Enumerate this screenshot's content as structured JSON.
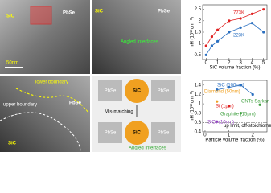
{
  "panels": [
    {
      "labels": [
        "SiC",
        "PbSe",
        "50nm"
      ]
    },
    {
      "labels": [
        "SiC",
        "PbSe",
        "Angled Interfaces"
      ]
    },
    {
      "labels": [
        "lower boundary",
        "upper boundary",
        "SiC",
        "PbSe"
      ]
    },
    {
      "labels": [
        "PbSe",
        "SiC",
        "PbSe",
        "Mis-matching",
        "PbSe",
        "SiC",
        "PbSe",
        "Angled Interfaces"
      ]
    }
  ],
  "chart_data": [
    {
      "type": "scatter",
      "y_label": "nH (10¹⁹cm⁻³)",
      "x_label": "SiC volume fraction (%)",
      "xlim": [
        -0.3,
        5.3
      ],
      "xticks": [
        0,
        1,
        2,
        3,
        4,
        5
      ],
      "ylim": [
        0.3,
        2.7
      ],
      "yticks": [
        0.5,
        1.0,
        1.5,
        2.0,
        2.5
      ],
      "series": [
        {
          "name": "773K",
          "color": "#e02020",
          "x": [
            0,
            0.5,
            1,
            2,
            3,
            4,
            5
          ],
          "values": [
            0.9,
            1.3,
            1.6,
            2.0,
            2.1,
            2.3,
            2.5
          ]
        },
        {
          "name": "223K",
          "color": "#2a6fc0",
          "x": [
            0,
            0.5,
            1,
            2,
            3,
            4,
            5
          ],
          "values": [
            0.5,
            0.9,
            1.1,
            1.5,
            1.7,
            1.9,
            1.5
          ]
        }
      ]
    },
    {
      "type": "scatter",
      "y_label": "nH (10¹⁹cm⁻³)",
      "x_label": "Particle volume fraction (%)",
      "xlim": [
        -0.1,
        2.6
      ],
      "xticks": [
        0,
        1,
        2
      ],
      "ylim": [
        0.4,
        1.5
      ],
      "yticks": [
        0.4,
        0.6,
        0.8,
        1.0,
        1.2,
        1.4
      ],
      "limit_line": 0.6,
      "limit_label": "up limit, off-stoichiometric PbSe",
      "series": [
        {
          "name": "SiC (100nm)",
          "color": "#2a6fc0",
          "x": [
            0.5,
            1,
            1.5,
            2
          ],
          "values": [
            1.3,
            1.35,
            1.4,
            1.2
          ]
        },
        {
          "name": "Diamond (50nm)",
          "color": "#f0a020",
          "x": [
            0.5
          ],
          "values": [
            1.05
          ]
        },
        {
          "name": "Si (1μm)",
          "color": "#e02020",
          "x": [
            1
          ],
          "values": [
            0.95
          ]
        },
        {
          "name": "Graphite (15μm)",
          "color": "#40a040",
          "x": [
            1.5
          ],
          "values": [
            0.8
          ]
        },
        {
          "name": "SiO₂ (10nm)",
          "color": "#9040c0",
          "x": [
            0.5
          ],
          "values": [
            0.62
          ]
        },
        {
          "name": "CNTs Sarkar",
          "color": "#40a040",
          "x": [
            2.3
          ],
          "values": [
            0.98
          ]
        }
      ]
    }
  ]
}
